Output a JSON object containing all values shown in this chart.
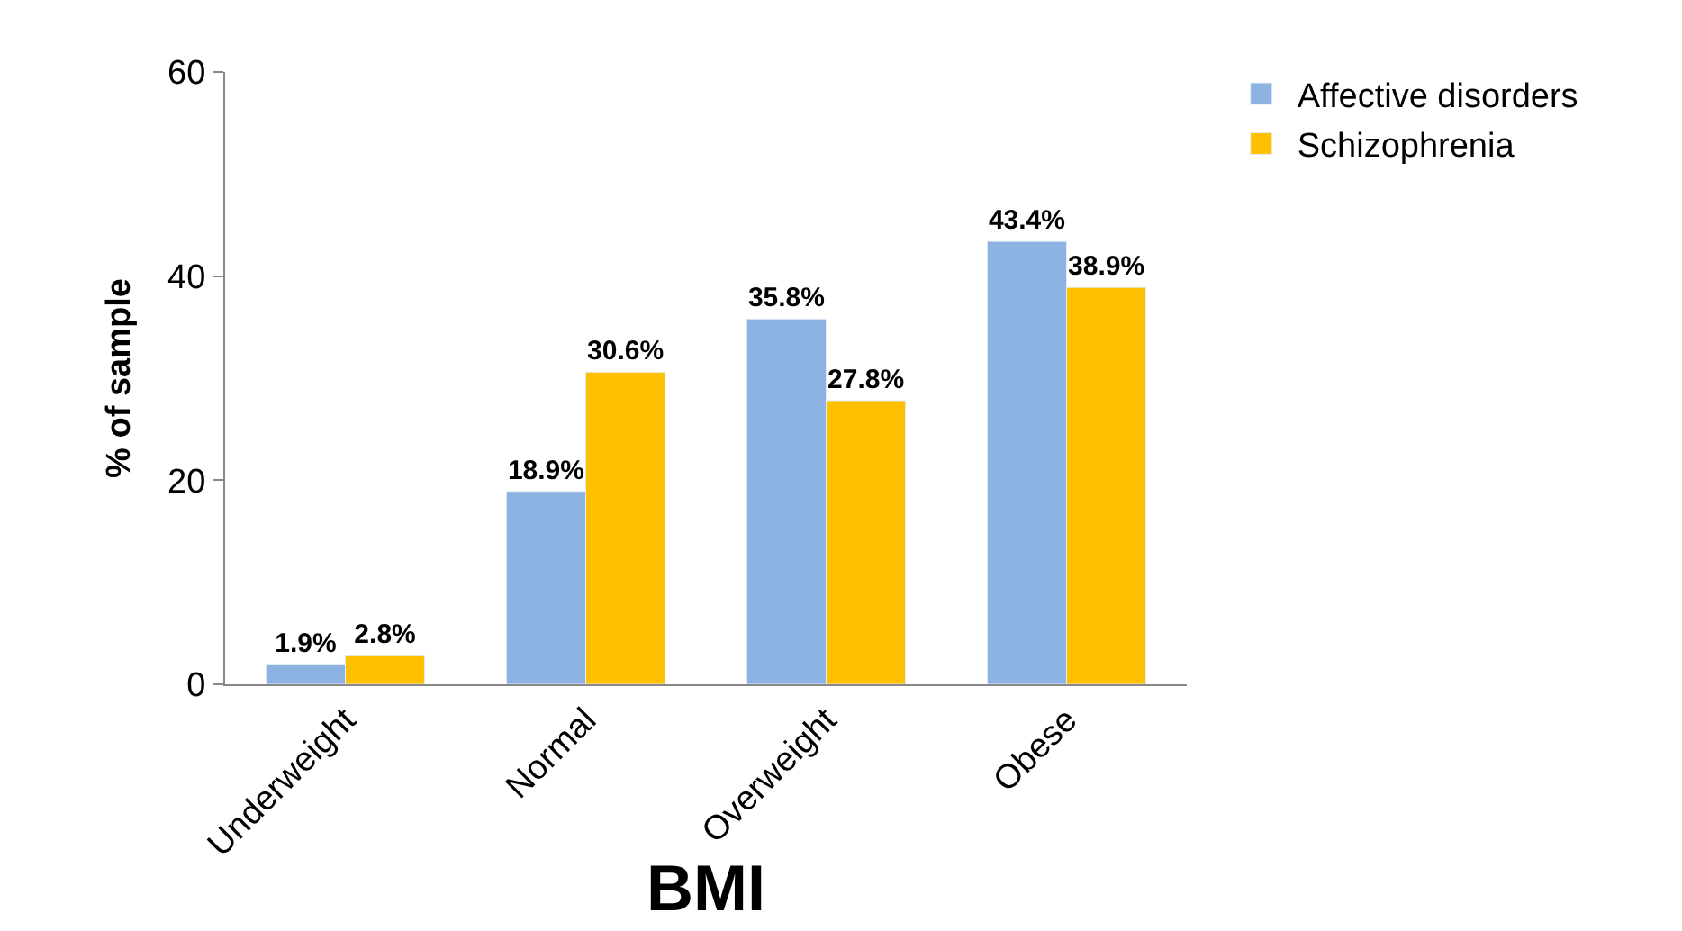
{
  "chart_data": {
    "type": "bar",
    "xlabel": "BMI",
    "ylabel": "% of sample",
    "categories": [
      "Underweight",
      "Normal",
      "Overweight",
      "Obese"
    ],
    "series": [
      {
        "name": "Affective disorders",
        "color": "#8db3e2",
        "values": [
          1.9,
          18.9,
          35.8,
          43.4
        ],
        "value_labels": [
          "1.9%",
          "18.9%",
          "35.8%",
          "43.4%"
        ]
      },
      {
        "name": "Schizophrenia",
        "color": "#ffc000",
        "values": [
          2.8,
          30.6,
          27.8,
          38.9
        ],
        "value_labels": [
          "2.8%",
          "30.6%",
          "27.8%",
          "38.9%"
        ]
      }
    ],
    "ylim": [
      0,
      60
    ],
    "yticks": [
      0,
      20,
      40,
      60
    ],
    "legend": "top right"
  }
}
